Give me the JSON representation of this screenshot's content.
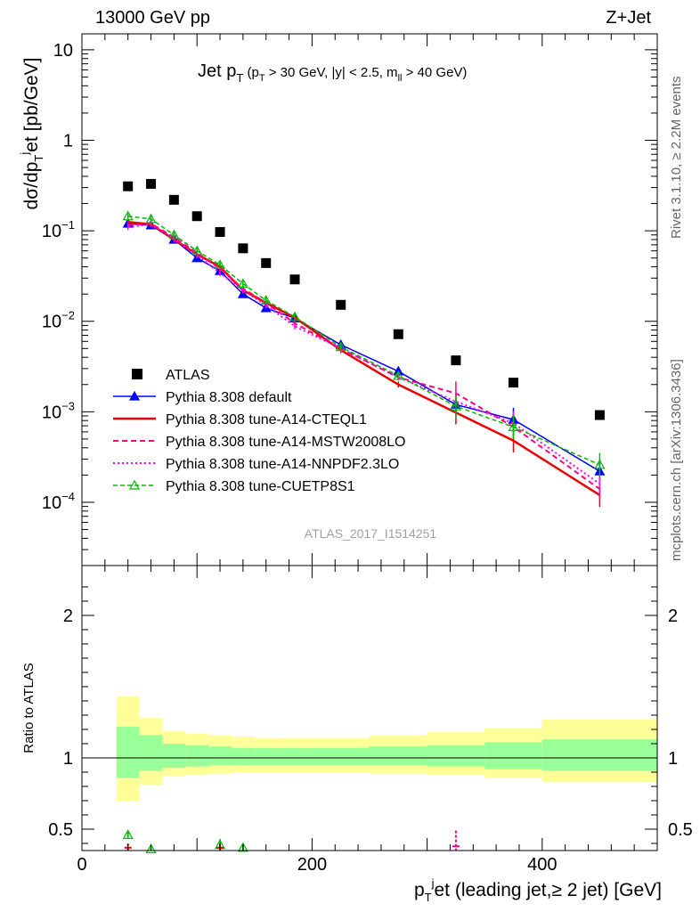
{
  "header": {
    "left": "13000 GeV pp",
    "right": "Z+Jet"
  },
  "side_labels": {
    "rivet": "Rivet 3.1.10, ≥ 2.2M events",
    "mcplots": "mcplots.cern.ch [arXiv:1306.3436]"
  },
  "chart_data": [
    {
      "type": "line",
      "title": {
        "main": "Jet p",
        "main_sub": "T",
        "cuts_pre": " (p",
        "cuts_sub1": "T",
        "cuts_mid": " > 30 GeV, |y| < 2.5, m",
        "cuts_sub2": "ll",
        "cuts_post": " > 40 GeV)"
      },
      "watermark": "ATLAS_2017_I1514251",
      "ylabel": {
        "a": "dσ/dp",
        "a_sub": "T",
        "a_sup": "j",
        "b": "et [pb/GeV]"
      },
      "yscale": "log",
      "ylim": [
        2e-05,
        15
      ],
      "xlim": [
        0,
        500
      ],
      "yticks": [
        {
          "value": 10,
          "label": "10"
        },
        {
          "value": 1,
          "label": "1"
        },
        {
          "value": 0.1,
          "label": "10",
          "exp": "−1"
        },
        {
          "value": 0.01,
          "label": "10",
          "exp": "−2"
        },
        {
          "value": 0.001,
          "label": "10",
          "exp": "−3"
        },
        {
          "value": 0.0001,
          "label": "10",
          "exp": "−4"
        }
      ],
      "legend_position": "bottom-left",
      "x": [
        40,
        60,
        80,
        100,
        120,
        140,
        160,
        185,
        225,
        275,
        325,
        375,
        450
      ],
      "series": [
        {
          "name": "ATLAS",
          "color": "#000000",
          "style": "square",
          "values": [
            0.31,
            0.33,
            0.22,
            0.145,
            0.097,
            0.064,
            0.044,
            0.029,
            0.0152,
            0.0072,
            0.0037,
            0.0021,
            0.00092
          ]
        },
        {
          "name": "Pythia 8.308 default",
          "color": "#0000ff",
          "style": "solid-triangle",
          "values": [
            0.12,
            0.115,
            0.08,
            0.05,
            0.036,
            0.02,
            0.014,
            0.0108,
            0.0055,
            0.0028,
            0.0012,
            0.00082,
            0.00022
          ]
        },
        {
          "name": "Pythia 8.308 tune-A14-CTEQL1",
          "color": "#ee0000",
          "style": "solid-thick",
          "values": [
            0.125,
            0.118,
            0.08,
            0.055,
            0.04,
            0.022,
            0.016,
            0.011,
            0.0048,
            0.002,
            0.00098,
            0.00048,
            0.00012
          ]
        },
        {
          "name": "Pythia 8.308 tune-A14-MSTW2008LO",
          "color": "#ff0080",
          "style": "dashed",
          "values": [
            0.115,
            0.12,
            0.085,
            0.057,
            0.038,
            0.023,
            0.016,
            0.0095,
            0.005,
            0.0024,
            0.0016,
            0.00068,
            0.00014
          ]
        },
        {
          "name": "Pythia 8.308 tune-A14-NNPDF2.3LO",
          "color": "#ff00ff",
          "style": "dotted",
          "values": [
            0.11,
            0.118,
            0.082,
            0.054,
            0.034,
            0.022,
            0.015,
            0.0088,
            0.005,
            0.0024,
            0.0013,
            0.00075,
            0.00016
          ]
        },
        {
          "name": "Pythia 8.308 tune-CUETP8S1",
          "color": "#00bb00",
          "style": "dashed-open-triangle",
          "values": [
            0.145,
            0.135,
            0.09,
            0.06,
            0.042,
            0.026,
            0.017,
            0.0112,
            0.0052,
            0.0025,
            0.00115,
            0.00068,
            0.00026
          ]
        }
      ]
    },
    {
      "type": "area",
      "ylabel": "Ratio to ATLAS",
      "xlabel": {
        "a": "p",
        "a_sub": "T",
        "a_sup": "j",
        "b": "et (leading jet,≥ 2 jet) [GeV]"
      },
      "xlim": [
        0,
        500
      ],
      "ylim": [
        0.35,
        2.35
      ],
      "xticks": [
        {
          "value": 0,
          "label": "0"
        },
        {
          "value": 200,
          "label": "200"
        },
        {
          "value": 400,
          "label": "400"
        }
      ],
      "yticks": [
        {
          "value": 0.5,
          "label": "0.5"
        },
        {
          "value": 1,
          "label": "1"
        },
        {
          "value": 2,
          "label": "2"
        }
      ],
      "reference": 1,
      "bins": [
        {
          "x0": 30,
          "x1": 50,
          "inner": [
            0.86,
            1.22
          ],
          "outer": [
            0.7,
            1.43
          ]
        },
        {
          "x0": 50,
          "x1": 70,
          "inner": [
            0.91,
            1.16
          ],
          "outer": [
            0.81,
            1.28
          ]
        },
        {
          "x0": 70,
          "x1": 90,
          "inner": [
            0.93,
            1.1
          ],
          "outer": [
            0.87,
            1.19
          ]
        },
        {
          "x0": 90,
          "x1": 110,
          "inner": [
            0.94,
            1.09
          ],
          "outer": [
            0.88,
            1.17
          ]
        },
        {
          "x0": 110,
          "x1": 130,
          "inner": [
            0.95,
            1.08
          ],
          "outer": [
            0.89,
            1.16
          ]
        },
        {
          "x0": 130,
          "x1": 150,
          "inner": [
            0.95,
            1.07
          ],
          "outer": [
            0.9,
            1.15
          ]
        },
        {
          "x0": 150,
          "x1": 170,
          "inner": [
            0.95,
            1.07
          ],
          "outer": [
            0.9,
            1.14
          ]
        },
        {
          "x0": 170,
          "x1": 200,
          "inner": [
            0.95,
            1.07
          ],
          "outer": [
            0.9,
            1.14
          ]
        },
        {
          "x0": 200,
          "x1": 250,
          "inner": [
            0.95,
            1.07
          ],
          "outer": [
            0.9,
            1.14
          ]
        },
        {
          "x0": 250,
          "x1": 300,
          "inner": [
            0.95,
            1.08
          ],
          "outer": [
            0.89,
            1.16
          ]
        },
        {
          "x0": 300,
          "x1": 350,
          "inner": [
            0.94,
            1.09
          ],
          "outer": [
            0.88,
            1.18
          ]
        },
        {
          "x0": 350,
          "x1": 400,
          "inner": [
            0.92,
            1.11
          ],
          "outer": [
            0.86,
            1.21
          ]
        },
        {
          "x0": 400,
          "x1": 500,
          "inner": [
            0.91,
            1.13
          ],
          "outer": [
            0.83,
            1.27
          ]
        }
      ],
      "band_colors": {
        "inner": "#99ff99",
        "outer": "#ffff99"
      },
      "ratio_points": [
        {
          "x": 40,
          "y": 0.46,
          "err": 0.02,
          "color": "#00bb00",
          "style": "open-triangle"
        },
        {
          "x": 60,
          "y": 0.36,
          "err": 0.01,
          "color": "#00bb00",
          "style": "open-triangle"
        },
        {
          "x": 120,
          "y": 0.39,
          "err": 0.04,
          "color": "#00bb00",
          "style": "open-triangle"
        },
        {
          "x": 140,
          "y": 0.37,
          "err": 0.03,
          "color": "#00bb00",
          "style": "open-triangle"
        },
        {
          "x": 40,
          "y": 0.37,
          "err": 0.03,
          "color": "#ee0000",
          "style": "cross"
        },
        {
          "x": 120,
          "y": 0.37,
          "err": 0.03,
          "color": "#ee0000",
          "style": "cross"
        },
        {
          "x": 325,
          "y": 0.38,
          "err": 0.11,
          "color": "#ff0080",
          "style": "cross"
        }
      ]
    }
  ]
}
